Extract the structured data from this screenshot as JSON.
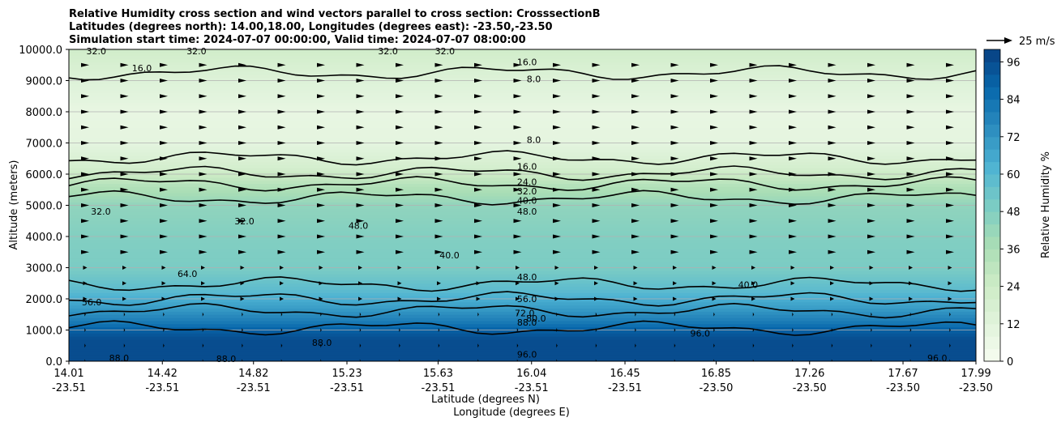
{
  "chart_data": {
    "type": "contour",
    "title_lines": [
      "Relative Humidity cross section and wind vectors parallel to cross section: CrosssectionB",
      "Latitudes (degrees north): 14.00,18.00, Longitudes (degrees east): -23.50,-23.50",
      "Simulation start time: 2024-07-07 00:00:00, Valid time: 2024-07-07 08:00:00"
    ],
    "xlabel_lines": [
      "Latitude (degrees N)",
      "Longitude (degrees E)"
    ],
    "ylabel": "Altitude (meters)",
    "x_range": [
      14.01,
      17.99
    ],
    "ylim": [
      0,
      10000
    ],
    "x_ticks": [
      {
        "lat": "14.01",
        "lon": "-23.51"
      },
      {
        "lat": "14.42",
        "lon": "-23.51"
      },
      {
        "lat": "14.82",
        "lon": "-23.51"
      },
      {
        "lat": "15.23",
        "lon": "-23.51"
      },
      {
        "lat": "15.63",
        "lon": "-23.51"
      },
      {
        "lat": "16.04",
        "lon": "-23.51"
      },
      {
        "lat": "16.45",
        "lon": "-23.51"
      },
      {
        "lat": "16.85",
        "lon": "-23.50"
      },
      {
        "lat": "17.26",
        "lon": "-23.50"
      },
      {
        "lat": "17.67",
        "lon": "-23.50"
      },
      {
        "lat": "17.99",
        "lon": "-23.50"
      }
    ],
    "y_ticks": [
      "0.0",
      "1000.0",
      "2000.0",
      "3000.0",
      "4000.0",
      "5000.0",
      "6000.0",
      "7000.0",
      "8000.0",
      "9000.0",
      "10000.0"
    ],
    "y_tick_values": [
      0,
      1000,
      2000,
      3000,
      4000,
      5000,
      6000,
      7000,
      8000,
      9000,
      10000
    ],
    "grid": "horizontal",
    "colorbar": {
      "label": "Relative Humidity %",
      "ticks": [
        "0",
        "12",
        "24",
        "36",
        "48",
        "60",
        "72",
        "84",
        "96"
      ],
      "tick_values": [
        0,
        12,
        24,
        36,
        48,
        60,
        72,
        84,
        96
      ],
      "range": [
        0,
        100
      ],
      "colors": [
        "#f7fcf0",
        "#e0f3db",
        "#ccebc5",
        "#a8ddb5",
        "#7bccc4",
        "#4eb3d3",
        "#2b8cbe",
        "#0868ac",
        "#084081"
      ]
    },
    "quiver_key": {
      "label": "25 m/s"
    },
    "contour_levels": [
      8,
      16,
      24,
      32,
      40,
      48,
      56,
      64,
      72,
      80,
      88,
      96
    ],
    "humidity_profile": [
      {
        "alt": 0,
        "rh": 96
      },
      {
        "alt": 700,
        "rh": 96
      },
      {
        "alt": 1000,
        "rh": 90
      },
      {
        "alt": 1300,
        "rh": 80
      },
      {
        "alt": 1700,
        "rh": 70
      },
      {
        "alt": 2300,
        "rh": 58
      },
      {
        "alt": 3000,
        "rh": 50
      },
      {
        "alt": 4000,
        "rh": 48
      },
      {
        "alt": 5000,
        "rh": 44
      },
      {
        "alt": 5600,
        "rh": 34
      },
      {
        "alt": 6200,
        "rh": 20
      },
      {
        "alt": 7000,
        "rh": 10
      },
      {
        "alt": 8000,
        "rh": 8
      },
      {
        "alt": 9000,
        "rh": 14
      },
      {
        "alt": 10000,
        "rh": 22
      }
    ],
    "contour_labels": [
      {
        "text": "8.0",
        "lat": 16.05,
        "alt": 9050
      },
      {
        "text": "8.0",
        "lat": 16.05,
        "alt": 7100
      },
      {
        "text": "16.0",
        "lat": 16.02,
        "alt": 9600
      },
      {
        "text": "16.0",
        "lat": 14.33,
        "alt": 9400
      },
      {
        "text": "16.0",
        "lat": 16.02,
        "alt": 6250
      },
      {
        "text": "24.0",
        "lat": 16.02,
        "alt": 5750
      },
      {
        "text": "32.0",
        "lat": 16.02,
        "alt": 5450
      },
      {
        "text": "40.0",
        "lat": 16.02,
        "alt": 5150
      },
      {
        "text": "48.0",
        "lat": 16.02,
        "alt": 4800
      },
      {
        "text": "48.0",
        "lat": 15.28,
        "alt": 4350
      },
      {
        "text": "32.0",
        "lat": 14.15,
        "alt": 4800
      },
      {
        "text": "32.0",
        "lat": 14.78,
        "alt": 4500
      },
      {
        "text": "40.0",
        "lat": 15.68,
        "alt": 3400
      },
      {
        "text": "48.0",
        "lat": 16.02,
        "alt": 2700
      },
      {
        "text": "64.0",
        "lat": 14.53,
        "alt": 2800
      },
      {
        "text": "56.0",
        "lat": 16.02,
        "alt": 2000
      },
      {
        "text": "56.0",
        "lat": 14.11,
        "alt": 1900
      },
      {
        "text": "40.0",
        "lat": 16.99,
        "alt": 2450
      },
      {
        "text": "72.0",
        "lat": 16.01,
        "alt": 1550
      },
      {
        "text": "80.0",
        "lat": 16.06,
        "alt": 1380
      },
      {
        "text": "88.0",
        "lat": 16.02,
        "alt": 1250
      },
      {
        "text": "96.0",
        "lat": 16.02,
        "alt": 220
      },
      {
        "text": "96.0",
        "lat": 16.78,
        "alt": 900
      },
      {
        "text": "96.0",
        "lat": 17.82,
        "alt": 100
      },
      {
        "text": "88.0",
        "lat": 14.23,
        "alt": 100
      },
      {
        "text": "88.0",
        "lat": 14.7,
        "alt": 80
      },
      {
        "text": "88.0",
        "lat": 15.12,
        "alt": 600
      },
      {
        "text": "32.0",
        "lat": 14.13,
        "alt": 9950
      },
      {
        "text": "32.0",
        "lat": 14.57,
        "alt": 9950
      },
      {
        "text": "32.0",
        "lat": 15.41,
        "alt": 9950
      },
      {
        "text": "32.0",
        "lat": 15.66,
        "alt": 9950
      }
    ]
  }
}
